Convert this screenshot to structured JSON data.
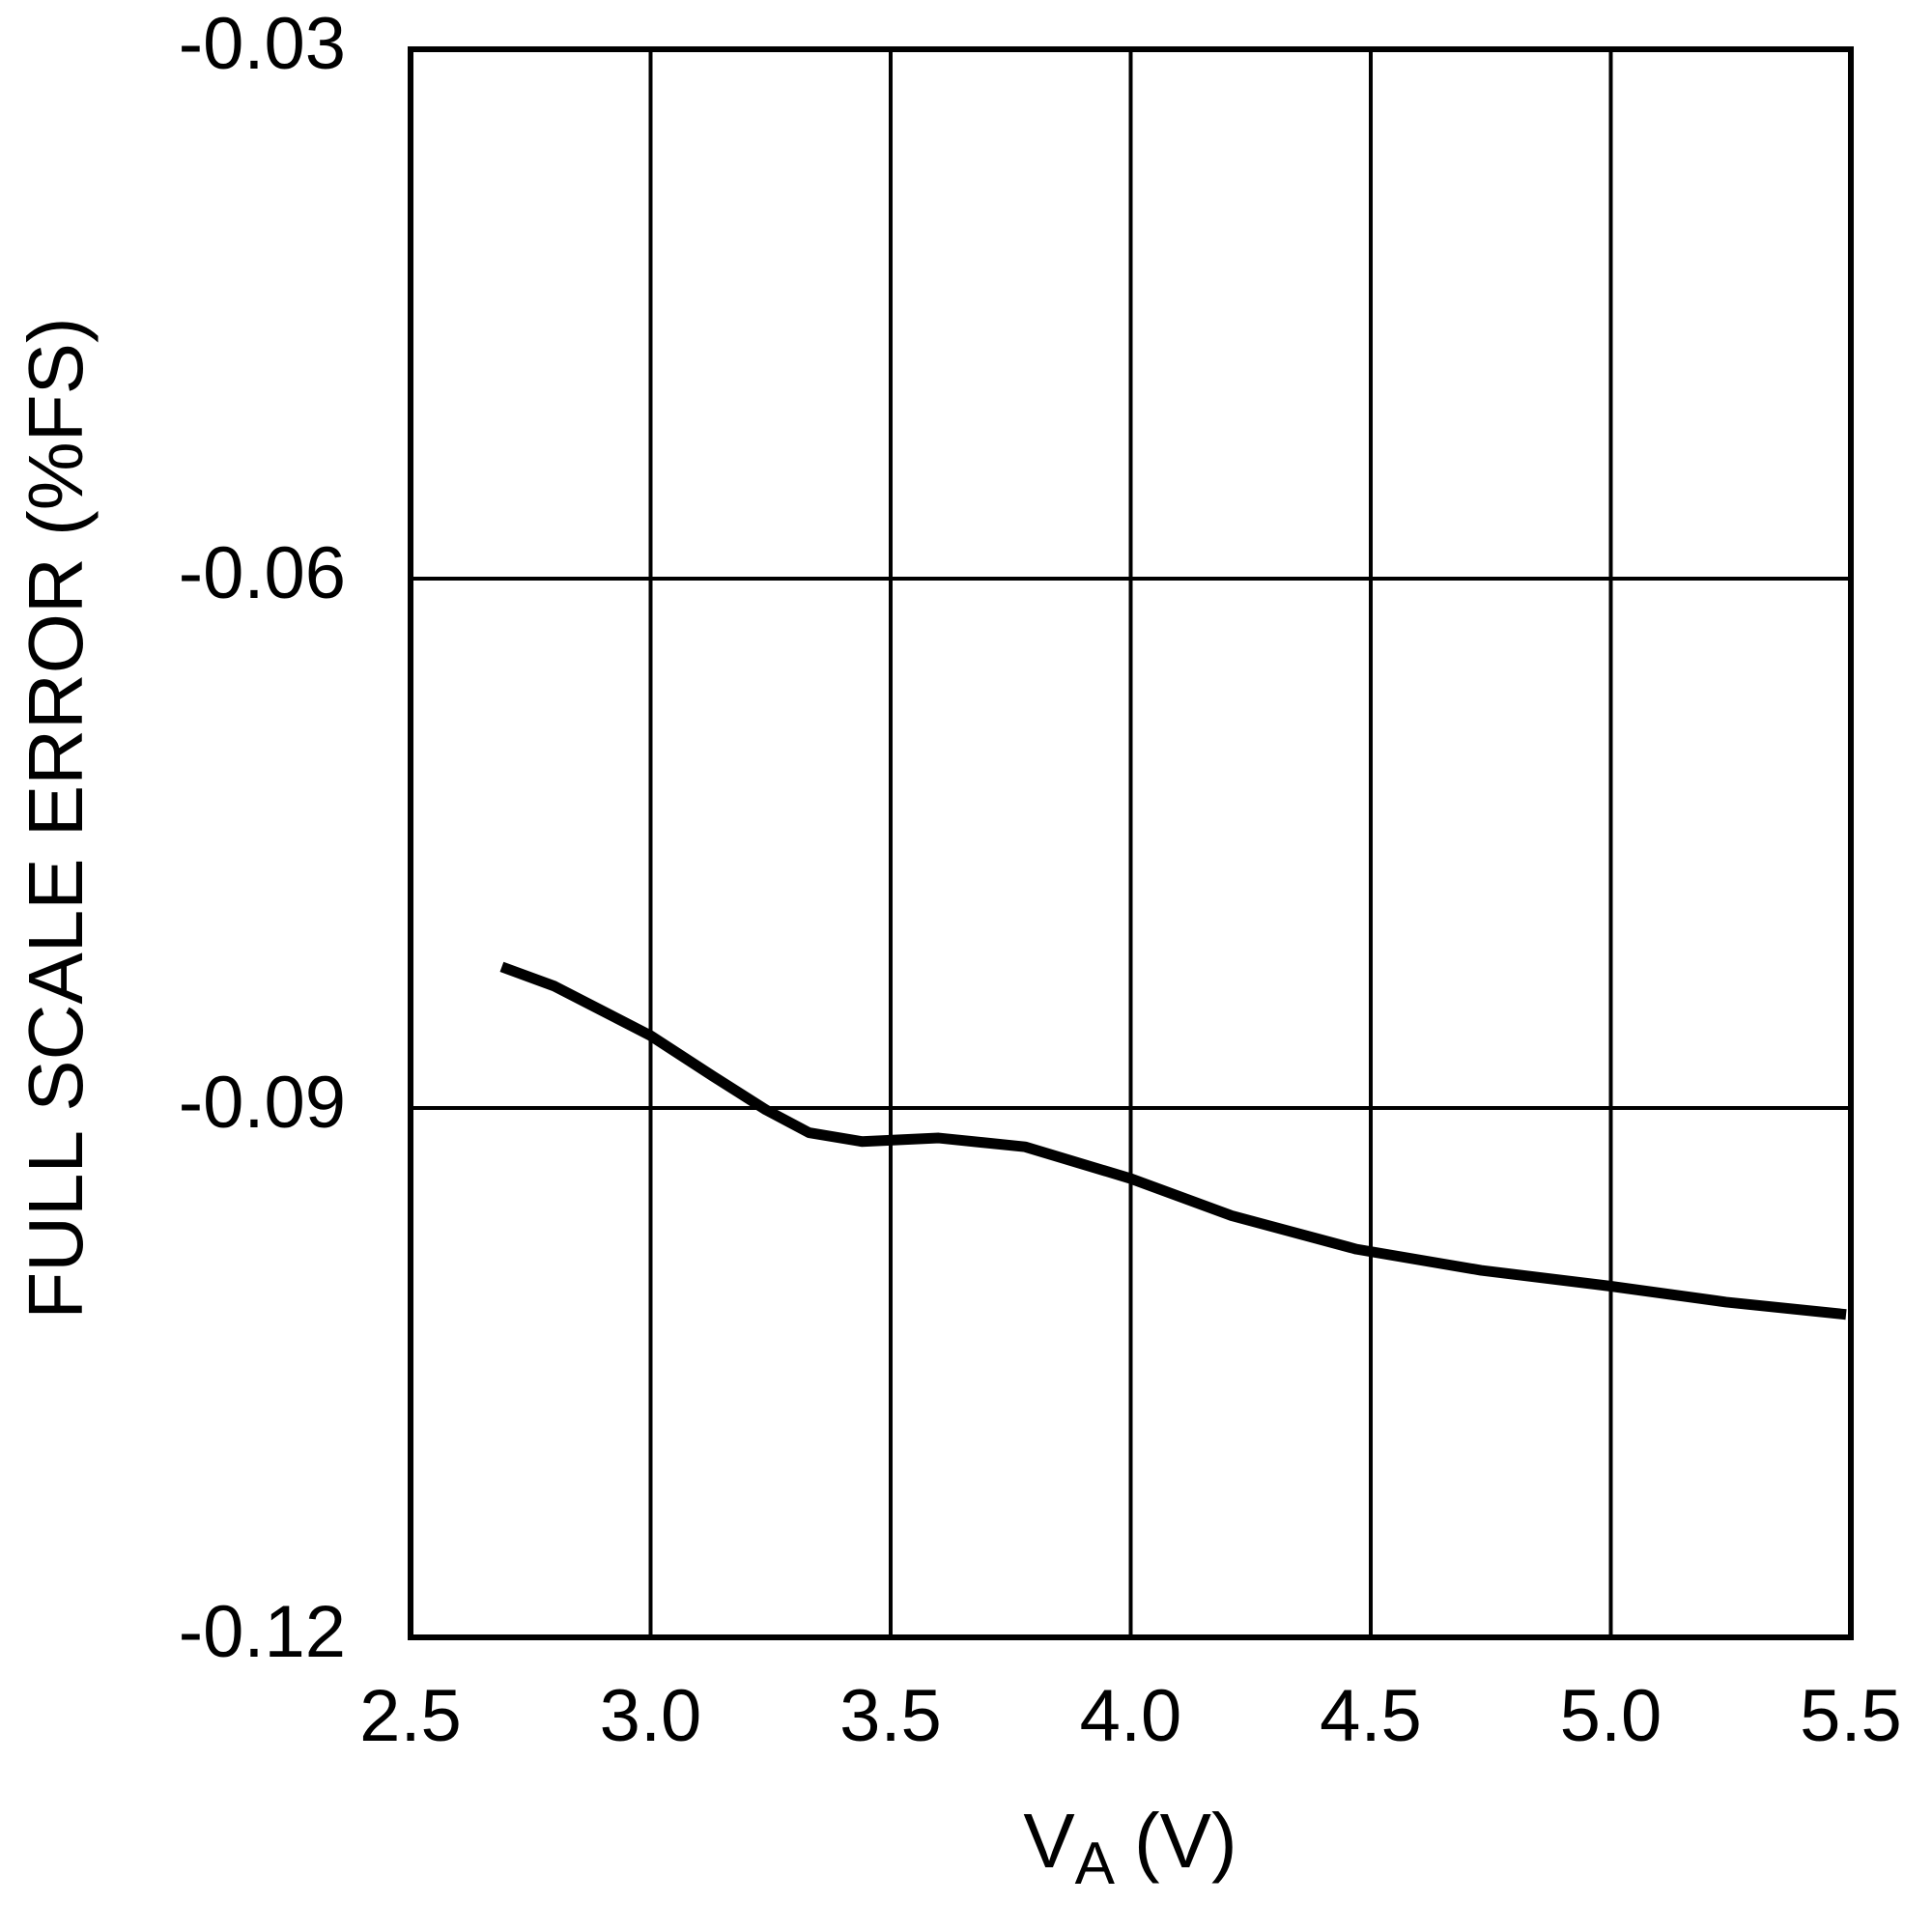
{
  "chart_data": {
    "type": "line",
    "xlabel": [
      "V",
      "A",
      "(V)"
    ],
    "ylabel": "FULL SCALE ERROR (%FS)",
    "x": [
      2.69,
      2.8,
      3.0,
      3.13,
      3.24,
      3.33,
      3.44,
      3.6,
      3.78,
      4.0,
      4.21,
      4.47,
      4.73,
      5.0,
      5.24,
      5.49
    ],
    "series": [
      {
        "color": "#000000",
        "values": [
          -0.082,
          -0.0831,
          -0.0859,
          -0.0882,
          -0.0901,
          -0.0914,
          -0.0919,
          -0.0917,
          -0.0922,
          -0.094,
          -0.0961,
          -0.098,
          -0.0992,
          -0.1001,
          -0.101,
          -0.1017
        ]
      }
    ],
    "xlim": [
      2.5,
      5.5
    ],
    "xticks": [
      2.5,
      {
        "value": 3,
        "label": "3.0"
      },
      3.5,
      {
        "value": 4,
        "label": "4.0"
      },
      4.5,
      {
        "value": 5,
        "label": "5.0"
      },
      5.5
    ],
    "ylim": [
      -0.12,
      -0.03
    ],
    "yticks": [
      -0.12,
      -0.09,
      -0.06,
      -0.03
    ],
    "grid": true
  }
}
